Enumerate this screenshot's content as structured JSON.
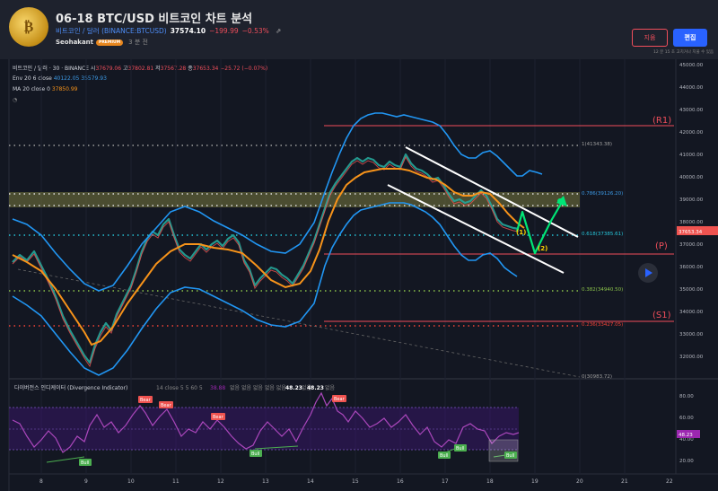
{
  "header": {
    "avatar_text": "₿",
    "title": "06-18 BTC/USD 비트코인 차트 분석",
    "symbol_link": "비트코인 / 달러 (BINANCE:BTCUSD)",
    "price": "37574.10",
    "change": "−199.99",
    "change_pct": "−0.53%",
    "author": "Seohakant",
    "author_badge": "PREMIUM",
    "posted_time": "3 분 전",
    "delete_label": "지움",
    "edit_label": "편집",
    "edit_note": "12 분 15 초 고치거나 지울 수 있음"
  },
  "legend": {
    "symbol": "비트코인 / 달러 · 30 · BINANCE",
    "open_label": "시",
    "open": "37679.06",
    "high_label": "고",
    "high": "37802.81",
    "low_label": "저",
    "low": "37567.28",
    "close_label": "종",
    "close": "37653.34",
    "change": "−25.72 (−0.07%)",
    "env_label": "Env 20 6 close",
    "env_upper": "40122.05",
    "env_lower": "35579.93",
    "ma_label": "MA 20 close 0",
    "ma_value": "37850.99"
  },
  "price_axis": {
    "ticks": [
      "45000.00",
      "44000.00",
      "43000.00",
      "42000.00",
      "41000.00",
      "40000.00",
      "39000.00",
      "38000.00",
      "37000.00",
      "36000.00",
      "35000.00",
      "34000.00",
      "33000.00",
      "32000.00"
    ],
    "current_price": "37653.34"
  },
  "time_axis": {
    "ticks": [
      "8",
      "9",
      "10",
      "11",
      "12",
      "13",
      "14",
      "15",
      "16",
      "17",
      "18",
      "19",
      "20",
      "21",
      "22"
    ]
  },
  "annotations": {
    "r1": "(R1)",
    "p": "(P)",
    "s1": "(S1)",
    "wave1": "(1)",
    "wave2": "(2)",
    "fib_1": "1(41343.38)",
    "fib_786": "0.786(39126.20)",
    "fib_618": "0.618(37385.61)",
    "fib_382": "0.382(34940.50)",
    "fib_236": "0.236(33427.05)",
    "fib_0": "0(30983.72)"
  },
  "oscillator": {
    "title": "다이버전스 인디케이터 (Divergence Indicator)",
    "params": "14 close 5 5 60 5",
    "val1": "38.88",
    "none_values": "없음 없음 없음 없음 없음",
    "value_a": "48.23",
    "none2": "없음",
    "value_b": "48.23",
    "none3": "없음",
    "ticks": [
      "80.00",
      "60.00",
      "40.00",
      "20.00"
    ],
    "bear_label": "Bear",
    "bull_label": "Bull",
    "current_value": "48.23"
  },
  "colors": {
    "background": "#131722",
    "envelope": "#2196f3",
    "ma": "#f7931a",
    "resistance": "#f04e5b",
    "support": "#4caf50",
    "oscillator": "#9c27b0",
    "arrow": "#00e676"
  }
}
